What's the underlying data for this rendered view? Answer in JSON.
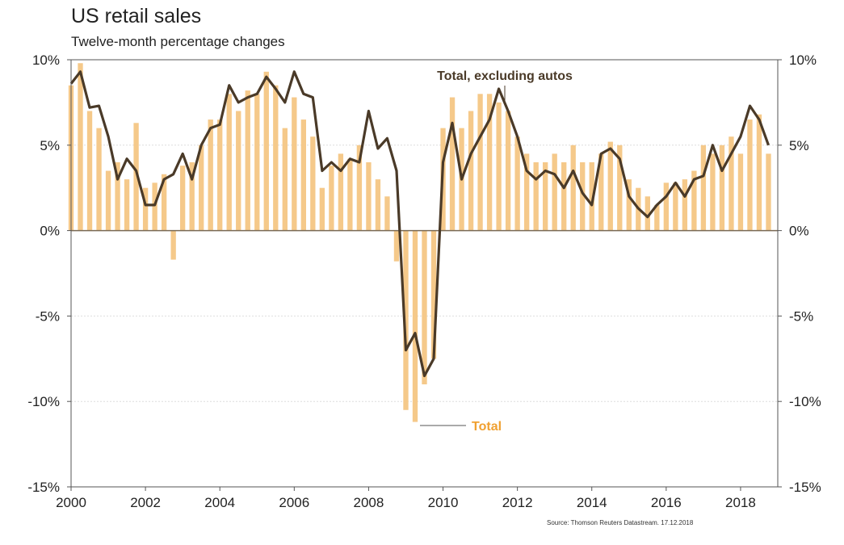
{
  "header": {
    "title": "US retail sales",
    "subtitle": "Twelve-month percentage changes"
  },
  "source": "Source: Thomson Reuters Datastream. 17.12.2018",
  "colors": {
    "total": "#f5c98a",
    "total_label": "#f0a030",
    "ex_autos": "#4a3a28",
    "gridline": "#dddddd",
    "zero_line": "#7a6a55"
  },
  "chart_data": {
    "type": "bar",
    "title": "US retail sales",
    "subtitle": "Twelve-month percentage changes",
    "xlabel": "",
    "ylabel": "",
    "ylim": [
      -15,
      10
    ],
    "xlim": [
      2000,
      2019
    ],
    "y_ticks": [
      "10%",
      "5%",
      "0%",
      "-5%",
      "-10%",
      "-15%"
    ],
    "y_tick_values": [
      10,
      5,
      0,
      -5,
      -10,
      -15
    ],
    "x_ticks": [
      "2000",
      "2002",
      "2004",
      "2006",
      "2008",
      "2010",
      "2012",
      "2014",
      "2016",
      "2018"
    ],
    "x_tick_values": [
      2000,
      2002,
      2004,
      2006,
      2008,
      2010,
      2012,
      2014,
      2016,
      2018
    ],
    "grid": true,
    "dual_axis": true,
    "series": [
      {
        "name": "Total",
        "type": "bar",
        "x": [
          2000.0,
          2000.25,
          2000.5,
          2000.75,
          2001.0,
          2001.25,
          2001.5,
          2001.75,
          2002.0,
          2002.25,
          2002.5,
          2002.75,
          2003.0,
          2003.25,
          2003.5,
          2003.75,
          2004.0,
          2004.25,
          2004.5,
          2004.75,
          2005.0,
          2005.25,
          2005.5,
          2005.75,
          2006.0,
          2006.25,
          2006.5,
          2006.75,
          2007.0,
          2007.25,
          2007.5,
          2007.75,
          2008.0,
          2008.25,
          2008.5,
          2008.75,
          2009.0,
          2009.25,
          2009.5,
          2009.75,
          2010.0,
          2010.25,
          2010.5,
          2010.75,
          2011.0,
          2011.25,
          2011.5,
          2011.75,
          2012.0,
          2012.25,
          2012.5,
          2012.75,
          2013.0,
          2013.25,
          2013.5,
          2013.75,
          2014.0,
          2014.25,
          2014.5,
          2014.75,
          2015.0,
          2015.25,
          2015.5,
          2015.75,
          2016.0,
          2016.25,
          2016.5,
          2016.75,
          2017.0,
          2017.25,
          2017.5,
          2017.75,
          2018.0,
          2018.25,
          2018.5,
          2018.75
        ],
        "values": [
          8.5,
          9.8,
          7.0,
          6.0,
          3.5,
          4.0,
          3.0,
          6.3,
          2.5,
          2.8,
          3.3,
          -1.7,
          3.8,
          4.0,
          5.0,
          6.5,
          6.5,
          8.0,
          7.0,
          8.2,
          8.0,
          9.3,
          8.5,
          6.0,
          7.8,
          6.5,
          5.5,
          2.5,
          3.8,
          4.5,
          4.2,
          5.0,
          4.0,
          3.0,
          2.0,
          -1.8,
          -10.5,
          -11.2,
          -9.0,
          -7.5,
          6.0,
          7.8,
          6.0,
          7.0,
          8.0,
          8.0,
          7.5,
          7.0,
          5.5,
          4.5,
          4.0,
          4.0,
          4.5,
          4.0,
          5.0,
          4.0,
          4.0,
          4.5,
          5.2,
          5.0,
          3.0,
          2.5,
          2.0,
          1.5,
          2.8,
          2.8,
          3.0,
          3.5,
          5.0,
          4.5,
          5.0,
          5.5,
          4.5,
          6.5,
          6.8,
          4.5
        ]
      },
      {
        "name": "Total, excluding autos",
        "type": "line",
        "x": [
          2000.0,
          2000.25,
          2000.5,
          2000.75,
          2001.0,
          2001.25,
          2001.5,
          2001.75,
          2002.0,
          2002.25,
          2002.5,
          2002.75,
          2003.0,
          2003.25,
          2003.5,
          2003.75,
          2004.0,
          2004.25,
          2004.5,
          2004.75,
          2005.0,
          2005.25,
          2005.5,
          2005.75,
          2006.0,
          2006.25,
          2006.5,
          2006.75,
          2007.0,
          2007.25,
          2007.5,
          2007.75,
          2008.0,
          2008.25,
          2008.5,
          2008.75,
          2009.0,
          2009.25,
          2009.5,
          2009.75,
          2010.0,
          2010.25,
          2010.5,
          2010.75,
          2011.0,
          2011.25,
          2011.5,
          2011.75,
          2012.0,
          2012.25,
          2012.5,
          2012.75,
          2013.0,
          2013.25,
          2013.5,
          2013.75,
          2014.0,
          2014.25,
          2014.5,
          2014.75,
          2015.0,
          2015.25,
          2015.5,
          2015.75,
          2016.0,
          2016.25,
          2016.5,
          2016.75,
          2017.0,
          2017.25,
          2017.5,
          2017.75,
          2018.0,
          2018.25,
          2018.5,
          2018.75
        ],
        "values": [
          8.6,
          9.3,
          7.2,
          7.3,
          5.5,
          3.0,
          4.2,
          3.5,
          1.5,
          1.5,
          3.0,
          3.3,
          4.5,
          3.0,
          5.0,
          6.0,
          6.2,
          8.5,
          7.5,
          7.8,
          8.0,
          9.0,
          8.3,
          7.5,
          9.3,
          8.0,
          7.8,
          3.5,
          4.0,
          3.5,
          4.2,
          4.0,
          7.0,
          4.8,
          5.4,
          3.5,
          -7.0,
          -6.0,
          -8.5,
          -7.5,
          4.0,
          6.3,
          3.0,
          4.5,
          5.5,
          6.5,
          8.3,
          7.0,
          5.5,
          3.5,
          3.0,
          3.5,
          3.3,
          2.5,
          3.5,
          2.2,
          1.5,
          4.5,
          4.8,
          4.2,
          2.0,
          1.3,
          0.8,
          1.5,
          2.0,
          2.8,
          2.0,
          3.0,
          3.2,
          5.0,
          3.5,
          4.5,
          5.5,
          7.3,
          6.5,
          5.0
        ]
      }
    ],
    "annotations": [
      "Total, excluding autos",
      "Total"
    ]
  }
}
